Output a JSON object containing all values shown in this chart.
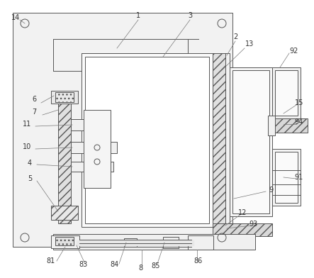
{
  "bg_color": "#ffffff",
  "line_color": "#555555",
  "fig_width": 4.43,
  "fig_height": 3.92,
  "label_fs": 7.0,
  "label_color": "#333333",
  "lw": 0.7
}
